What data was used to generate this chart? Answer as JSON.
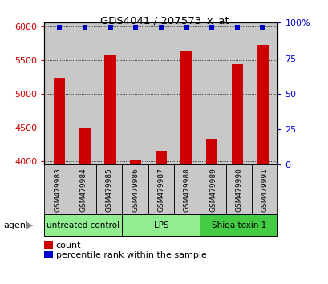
{
  "title": "GDS4041 / 207573_x_at",
  "samples": [
    "GSM479983",
    "GSM479984",
    "GSM479985",
    "GSM479986",
    "GSM479987",
    "GSM479988",
    "GSM479989",
    "GSM479990",
    "GSM479991"
  ],
  "counts": [
    5230,
    4490,
    5580,
    4020,
    4150,
    5640,
    4330,
    5440,
    5720
  ],
  "percentiles": [
    97,
    97,
    97,
    97,
    97,
    97,
    97,
    97,
    97
  ],
  "ylim_left": [
    3950,
    6050
  ],
  "ylim_right": [
    0,
    100
  ],
  "yticks_left": [
    4000,
    4500,
    5000,
    5500,
    6000
  ],
  "yticks_right": [
    0,
    25,
    50,
    75,
    100
  ],
  "bar_color": "#CC0000",
  "dot_color": "#0000CC",
  "bar_width": 0.45,
  "panel_bg": "#C8C8C8",
  "group_configs": [
    {
      "label": "untreated control",
      "start": 0,
      "end": 3,
      "color": "#90EE90"
    },
    {
      "label": "LPS",
      "start": 3,
      "end": 6,
      "color": "#90EE90"
    },
    {
      "label": "Shiga toxin 1",
      "start": 6,
      "end": 9,
      "color": "#44CC44"
    }
  ],
  "legend_count_color": "#CC0000",
  "legend_pct_color": "#0000CC",
  "ylabel_left_color": "#CC0000",
  "ylabel_right_color": "#0000CC"
}
